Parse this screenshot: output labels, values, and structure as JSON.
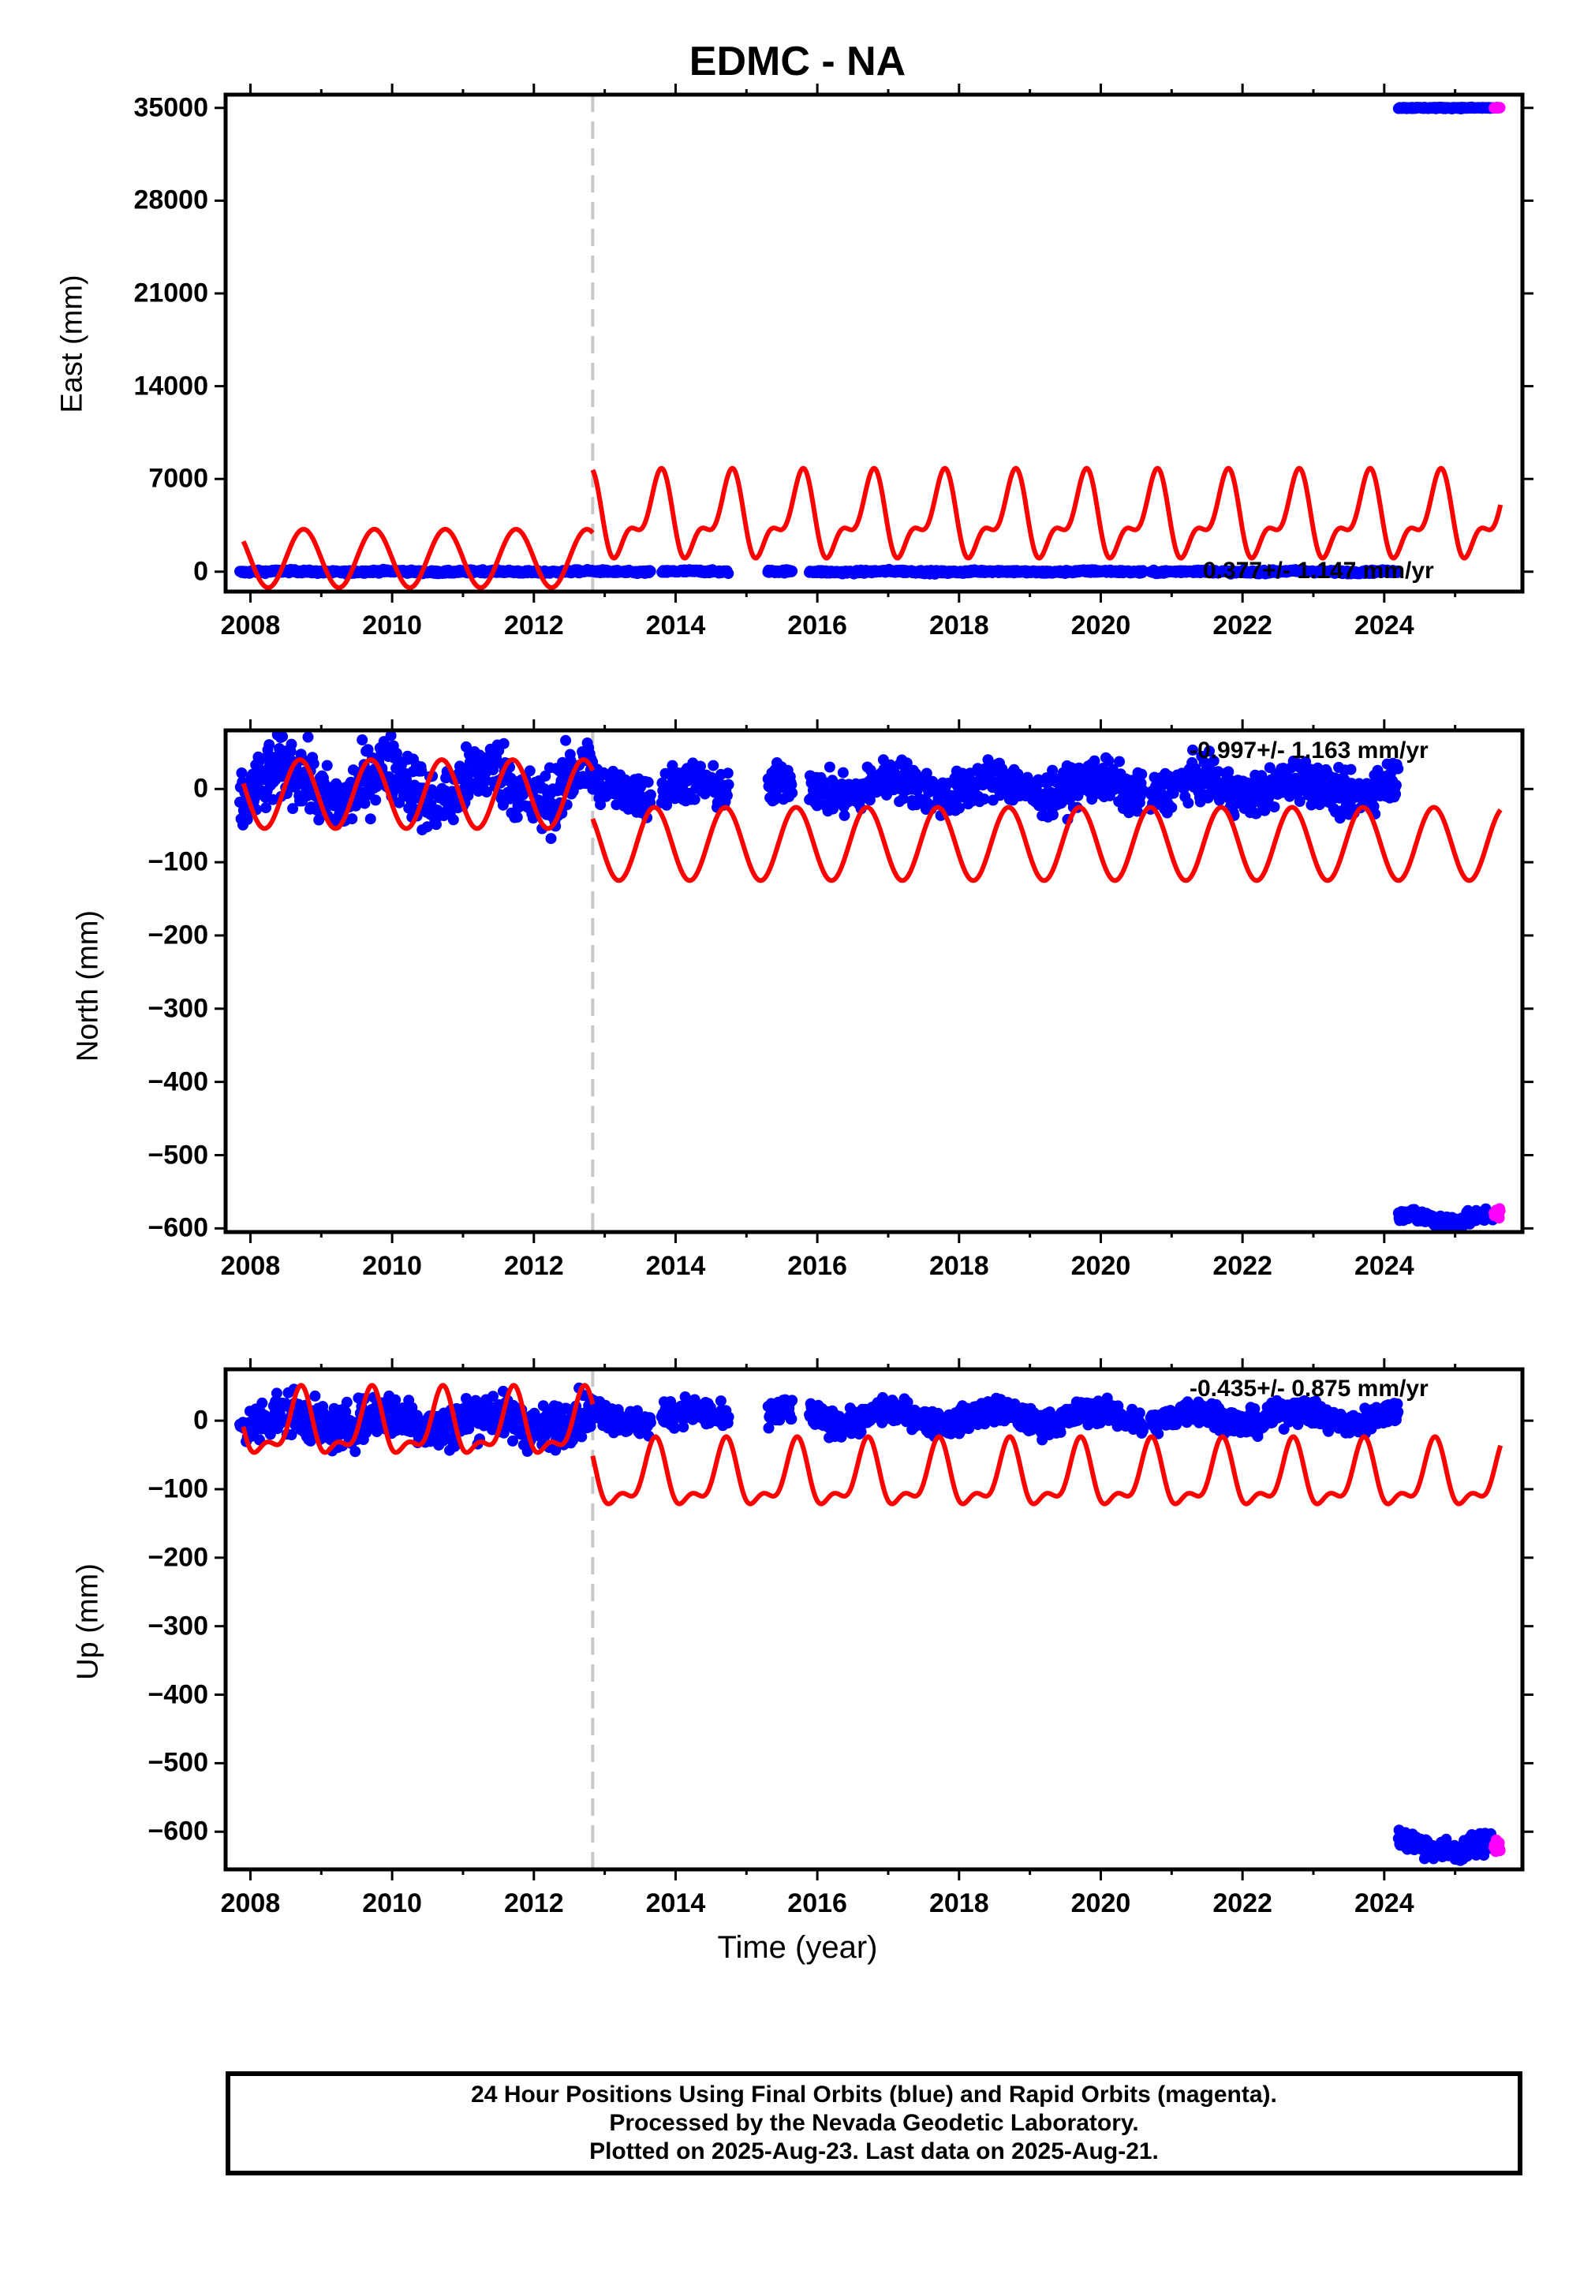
{
  "title": "EDMC - NA",
  "xlabel": "Time (year)",
  "colors": {
    "final": "#0000ff",
    "rapid": "#ff00ff",
    "model": "#ff0000",
    "break": "#c8c8c8"
  },
  "footer": {
    "line1": "24 Hour Positions Using Final Orbits (blue) and Rapid Orbits (magenta).",
    "line2": "Processed by the Nevada Geodetic Laboratory.",
    "line3": "Plotted on 2025-Aug-23. Last data on 2025-Aug-21."
  },
  "chart_data": [
    {
      "type": "scatter",
      "ylabel": "East (mm)",
      "xlim": [
        2007.65,
        2025.95
      ],
      "ylim": [
        -1500,
        36000
      ],
      "xticks": [
        "2008",
        "2010",
        "2012",
        "2014",
        "2016",
        "2018",
        "2020",
        "2022",
        "2024"
      ],
      "yticks": [
        "0",
        "7000",
        "14000",
        "21000",
        "28000",
        "35000"
      ],
      "rate": "0.377+/- 1.147 mm/yr",
      "equipment_change": 2012.83,
      "data_gaps": [
        [
          2013.65,
          2013.8
        ],
        [
          2014.75,
          2015.3
        ],
        [
          2015.65,
          2015.88
        ],
        [
          2020.6,
          2020.7
        ]
      ],
      "series": [
        {
          "role": "final",
          "segments": [
            {
              "x0": 2007.85,
              "x1": 2024.2,
              "mean": 0,
              "amp": 40,
              "jitter": 60
            },
            {
              "x0": 2024.2,
              "x1": 2025.55,
              "mean": 35000,
              "amp": 0,
              "jitter": 30
            }
          ]
        },
        {
          "role": "rapid",
          "segments": [
            {
              "x0": 2025.55,
              "x1": 2025.64,
              "mean": 35000,
              "amp": 0,
              "jitter": 20
            }
          ]
        },
        {
          "role": "model",
          "segments": [
            {
              "x0": 2007.9,
              "x1": 2012.83,
              "mean": 1000,
              "a1": 2200,
              "p1": 0.5,
              "a2": 0,
              "p2": 0
            },
            {
              "x0": 2012.83,
              "x1": 2025.64,
              "mean": 4000,
              "a1": 2600,
              "p1": 0.5,
              "a2": 1400,
              "p2": 0.2
            }
          ]
        }
      ]
    },
    {
      "type": "scatter",
      "ylabel": "North (mm)",
      "xlim": [
        2007.65,
        2025.95
      ],
      "ylim": [
        -605,
        80
      ],
      "xticks": [
        "2008",
        "2010",
        "2012",
        "2014",
        "2016",
        "2018",
        "2020",
        "2022",
        "2024"
      ],
      "yticks": [
        "0",
        "−100",
        "−200",
        "−300",
        "−400",
        "−500",
        "−600"
      ],
      "rate": "-0.997+/- 1.163 mm/yr",
      "equipment_change": 2012.83,
      "data_gaps": [
        [
          2013.65,
          2013.8
        ],
        [
          2014.75,
          2015.3
        ],
        [
          2015.65,
          2015.88
        ],
        [
          2020.6,
          2020.7
        ]
      ],
      "series": [
        {
          "role": "final",
          "segments": [
            {
              "x0": 2007.85,
              "x1": 2012.83,
              "mean": 5,
              "amp": 25,
              "jitter": 22
            },
            {
              "x0": 2012.83,
              "x1": 2015.6,
              "mean": 0,
              "amp": 10,
              "jitter": 14
            },
            {
              "x0": 2015.6,
              "x1": 2024.2,
              "mean": 2,
              "amp": 12,
              "jitter": 14
            },
            {
              "x0": 2024.2,
              "x1": 2025.55,
              "mean": -585,
              "amp": 5,
              "jitter": 5
            }
          ]
        },
        {
          "role": "rapid",
          "segments": [
            {
              "x0": 2025.55,
              "x1": 2025.64,
              "mean": -580,
              "amp": 0,
              "jitter": 4
            }
          ]
        },
        {
          "role": "model",
          "segments": [
            {
              "x0": 2007.9,
              "x1": 2012.83,
              "mean": -7,
              "a1": 47,
              "p1": 0.45,
              "a2": 0,
              "p2": 0
            },
            {
              "x0": 2012.83,
              "x1": 2025.64,
              "mean": -75,
              "a1": 50,
              "p1": 0.45,
              "a2": 0,
              "p2": 0
            }
          ]
        }
      ]
    },
    {
      "type": "scatter",
      "ylabel": "Up (mm)",
      "xlim": [
        2007.65,
        2025.95
      ],
      "ylim": [
        -655,
        75
      ],
      "xticks": [
        "2008",
        "2010",
        "2012",
        "2014",
        "2016",
        "2018",
        "2020",
        "2022",
        "2024"
      ],
      "yticks": [
        "0",
        "−100",
        "−200",
        "−300",
        "−400",
        "−500",
        "−600"
      ],
      "rate": "-0.435+/- 0.875 mm/yr",
      "equipment_change": 2012.83,
      "data_gaps": [
        [
          2013.65,
          2013.8
        ],
        [
          2014.75,
          2015.3
        ],
        [
          2015.65,
          2015.88
        ],
        [
          2020.6,
          2020.7
        ]
      ],
      "series": [
        {
          "role": "final",
          "segments": [
            {
              "x0": 2007.85,
              "x1": 2012.83,
              "mean": 0,
              "amp": 12,
              "jitter": 16
            },
            {
              "x0": 2012.83,
              "x1": 2015.6,
              "mean": 5,
              "amp": 10,
              "jitter": 10
            },
            {
              "x0": 2015.6,
              "x1": 2024.2,
              "mean": 5,
              "amp": 10,
              "jitter": 9
            },
            {
              "x0": 2024.2,
              "x1": 2025.55,
              "mean": -620,
              "amp": 8,
              "jitter": 8
            }
          ]
        },
        {
          "role": "rapid",
          "segments": [
            {
              "x0": 2025.55,
              "x1": 2025.64,
              "mean": -620,
              "amp": 0,
              "jitter": 6
            }
          ]
        },
        {
          "role": "model",
          "segments": [
            {
              "x0": 2007.9,
              "x1": 2012.83,
              "mean": -10,
              "a1": 42,
              "p1": 0.45,
              "a2": 20,
              "p2": 0.1
            },
            {
              "x0": 2012.83,
              "x1": 2025.64,
              "mean": -85,
              "a1": 42,
              "p1": 0.45,
              "a2": 20,
              "p2": 0.1
            }
          ]
        }
      ]
    }
  ]
}
